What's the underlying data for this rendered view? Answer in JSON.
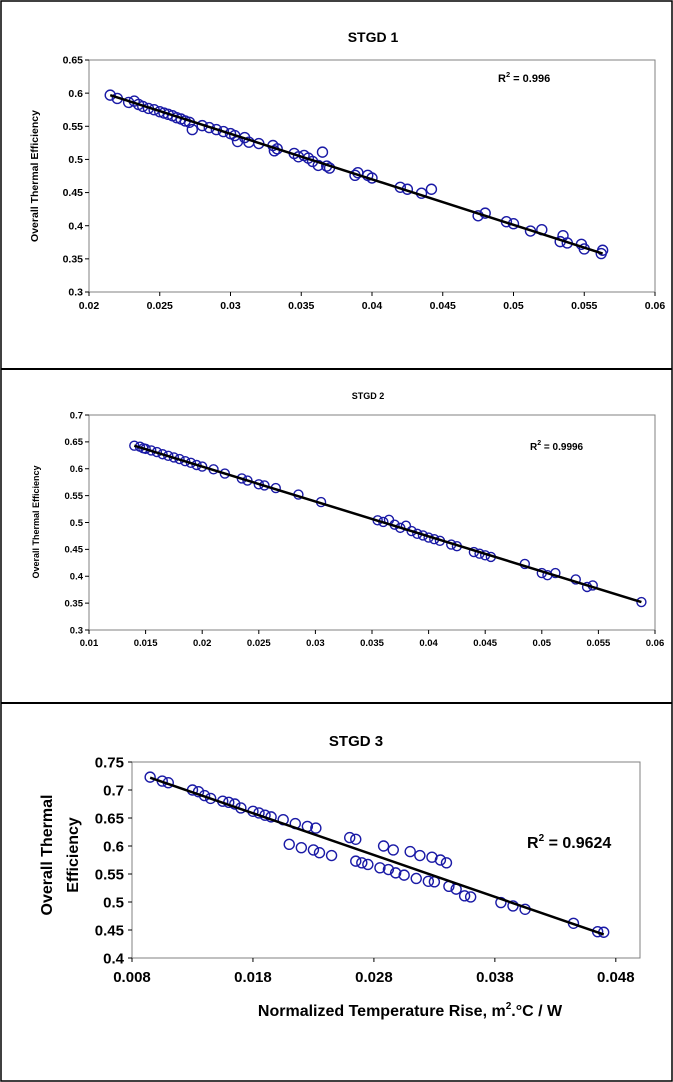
{
  "chart_data": [
    {
      "type": "scatter",
      "title": "STGD 1",
      "xlabel": "",
      "ylabel": "Overall Thermal Efficiency",
      "annotation": "R",
      "annotation_sup": "2",
      "annotation_val": " = 0.996",
      "xlim": [
        0.02,
        0.06
      ],
      "ylim": [
        0.3,
        0.65
      ],
      "xticks": [
        "0.02",
        "0.025",
        "0.03",
        "0.035",
        "0.04",
        "0.045",
        "0.05",
        "0.055",
        "0.06"
      ],
      "yticks": [
        "0.3",
        "0.35",
        "0.4",
        "0.45",
        "0.5",
        "0.55",
        "0.6",
        "0.65"
      ],
      "grid": false,
      "marker_color": "#1a1aa6",
      "trend": {
        "x": [
          0.0215,
          0.0563
        ],
        "y": [
          0.597,
          0.358
        ],
        "color": "#000000"
      },
      "points": [
        [
          0.0215,
          0.597
        ],
        [
          0.022,
          0.592
        ],
        [
          0.0228,
          0.586
        ],
        [
          0.0232,
          0.588
        ],
        [
          0.0235,
          0.583
        ],
        [
          0.0238,
          0.58
        ],
        [
          0.0242,
          0.577
        ],
        [
          0.0246,
          0.575
        ],
        [
          0.025,
          0.572
        ],
        [
          0.0253,
          0.57
        ],
        [
          0.0256,
          0.568
        ],
        [
          0.0259,
          0.566
        ],
        [
          0.0262,
          0.563
        ],
        [
          0.0265,
          0.561
        ],
        [
          0.0268,
          0.558
        ],
        [
          0.0271,
          0.556
        ],
        [
          0.0273,
          0.545
        ],
        [
          0.028,
          0.551
        ],
        [
          0.0285,
          0.548
        ],
        [
          0.029,
          0.545
        ],
        [
          0.0295,
          0.542
        ],
        [
          0.03,
          0.539
        ],
        [
          0.0303,
          0.536
        ],
        [
          0.0305,
          0.527
        ],
        [
          0.031,
          0.533
        ],
        [
          0.0313,
          0.526
        ],
        [
          0.032,
          0.524
        ],
        [
          0.033,
          0.521
        ],
        [
          0.0331,
          0.513
        ],
        [
          0.0333,
          0.516
        ],
        [
          0.0345,
          0.509
        ],
        [
          0.0348,
          0.504
        ],
        [
          0.0352,
          0.506
        ],
        [
          0.0355,
          0.502
        ],
        [
          0.0358,
          0.497
        ],
        [
          0.0362,
          0.491
        ],
        [
          0.0365,
          0.511
        ],
        [
          0.0368,
          0.49
        ],
        [
          0.037,
          0.487
        ],
        [
          0.0388,
          0.476
        ],
        [
          0.039,
          0.48
        ],
        [
          0.0397,
          0.476
        ],
        [
          0.04,
          0.472
        ],
        [
          0.042,
          0.458
        ],
        [
          0.0425,
          0.455
        ],
        [
          0.0435,
          0.449
        ],
        [
          0.0442,
          0.455
        ],
        [
          0.0475,
          0.415
        ],
        [
          0.048,
          0.419
        ],
        [
          0.0495,
          0.406
        ],
        [
          0.05,
          0.403
        ],
        [
          0.0512,
          0.392
        ],
        [
          0.052,
          0.394
        ],
        [
          0.0533,
          0.376
        ],
        [
          0.0535,
          0.385
        ],
        [
          0.0538,
          0.374
        ],
        [
          0.0548,
          0.372
        ],
        [
          0.055,
          0.365
        ],
        [
          0.0562,
          0.358
        ],
        [
          0.0563,
          0.363
        ]
      ]
    },
    {
      "type": "scatter",
      "title": "STGD 2",
      "xlabel": "",
      "ylabel": "Overall Thermal Efficiency",
      "annotation": "R",
      "annotation_sup": "2",
      "annotation_val": " = 0.9996",
      "xlim": [
        0.01,
        0.06
      ],
      "ylim": [
        0.3,
        0.7
      ],
      "xticks": [
        "0.01",
        "0.015",
        "0.02",
        "0.025",
        "0.03",
        "0.035",
        "0.04",
        "0.045",
        "0.05",
        "0.055",
        "0.06"
      ],
      "yticks": [
        "0.3",
        "0.35",
        "0.4",
        "0.45",
        "0.5",
        "0.55",
        "0.6",
        "0.65",
        "0.7"
      ],
      "grid": false,
      "marker_color": "#1a1aa6",
      "trend": {
        "x": [
          0.014,
          0.0588
        ],
        "y": [
          0.643,
          0.352
        ],
        "color": "#000000"
      },
      "points": [
        [
          0.014,
          0.643
        ],
        [
          0.0145,
          0.641
        ],
        [
          0.0148,
          0.638
        ],
        [
          0.015,
          0.637
        ],
        [
          0.0155,
          0.634
        ],
        [
          0.016,
          0.631
        ],
        [
          0.0165,
          0.627
        ],
        [
          0.017,
          0.624
        ],
        [
          0.0175,
          0.621
        ],
        [
          0.018,
          0.618
        ],
        [
          0.0185,
          0.614
        ],
        [
          0.019,
          0.611
        ],
        [
          0.0195,
          0.607
        ],
        [
          0.02,
          0.604
        ],
        [
          0.021,
          0.599
        ],
        [
          0.022,
          0.591
        ],
        [
          0.0235,
          0.582
        ],
        [
          0.024,
          0.578
        ],
        [
          0.025,
          0.571
        ],
        [
          0.0255,
          0.569
        ],
        [
          0.0265,
          0.564
        ],
        [
          0.0285,
          0.552
        ],
        [
          0.0305,
          0.538
        ],
        [
          0.0355,
          0.504
        ],
        [
          0.036,
          0.501
        ],
        [
          0.0365,
          0.505
        ],
        [
          0.037,
          0.496
        ],
        [
          0.0375,
          0.49
        ],
        [
          0.038,
          0.494
        ],
        [
          0.0385,
          0.484
        ],
        [
          0.039,
          0.479
        ],
        [
          0.0395,
          0.476
        ],
        [
          0.04,
          0.472
        ],
        [
          0.0405,
          0.469
        ],
        [
          0.041,
          0.466
        ],
        [
          0.042,
          0.459
        ],
        [
          0.0425,
          0.456
        ],
        [
          0.044,
          0.445
        ],
        [
          0.0445,
          0.442
        ],
        [
          0.045,
          0.439
        ],
        [
          0.0455,
          0.436
        ],
        [
          0.0485,
          0.423
        ],
        [
          0.05,
          0.406
        ],
        [
          0.0505,
          0.402
        ],
        [
          0.0512,
          0.406
        ],
        [
          0.053,
          0.394
        ],
        [
          0.054,
          0.38
        ],
        [
          0.0545,
          0.383
        ],
        [
          0.0588,
          0.352
        ]
      ]
    },
    {
      "type": "scatter",
      "title": "STGD 3",
      "xlabel": "Normalized Temperature Rise, m",
      "xlabel_sup": "2",
      "xlabel_rest": ".°C / W",
      "ylabel_line1": "Overall Thermal",
      "ylabel_line2": "Efficiency",
      "annotation": "R",
      "annotation_sup": "2",
      "annotation_val": " = 0.9624",
      "xlim": [
        0.008,
        0.05
      ],
      "ylim": [
        0.4,
        0.75
      ],
      "xticks": [
        "0.008",
        "0.018",
        "0.028",
        "0.038",
        "0.048"
      ],
      "xtick_values": [
        0.008,
        0.018,
        0.028,
        0.038,
        0.048
      ],
      "yticks": [
        "0.4",
        "0.45",
        "0.5",
        "0.55",
        "0.6",
        "0.65",
        "0.7",
        "0.75"
      ],
      "grid": false,
      "marker_color": "#1a1aa6",
      "trend": {
        "x": [
          0.0095,
          0.047
        ],
        "y": [
          0.722,
          0.442
        ],
        "color": "#000000"
      },
      "points": [
        [
          0.0095,
          0.723
        ],
        [
          0.0105,
          0.716
        ],
        [
          0.011,
          0.713
        ],
        [
          0.013,
          0.7
        ],
        [
          0.0135,
          0.697
        ],
        [
          0.014,
          0.69
        ],
        [
          0.0145,
          0.685
        ],
        [
          0.0155,
          0.68
        ],
        [
          0.016,
          0.678
        ],
        [
          0.0165,
          0.675
        ],
        [
          0.017,
          0.668
        ],
        [
          0.018,
          0.662
        ],
        [
          0.0185,
          0.659
        ],
        [
          0.019,
          0.655
        ],
        [
          0.0195,
          0.652
        ],
        [
          0.0205,
          0.647
        ],
        [
          0.0215,
          0.64
        ],
        [
          0.0225,
          0.635
        ],
        [
          0.0232,
          0.632
        ],
        [
          0.021,
          0.603
        ],
        [
          0.022,
          0.597
        ],
        [
          0.023,
          0.593
        ],
        [
          0.0235,
          0.588
        ],
        [
          0.0245,
          0.583
        ],
        [
          0.026,
          0.615
        ],
        [
          0.0265,
          0.612
        ],
        [
          0.0265,
          0.573
        ],
        [
          0.027,
          0.57
        ],
        [
          0.0275,
          0.567
        ],
        [
          0.0285,
          0.561
        ],
        [
          0.0288,
          0.6
        ],
        [
          0.0292,
          0.558
        ],
        [
          0.0296,
          0.593
        ],
        [
          0.0298,
          0.552
        ],
        [
          0.0305,
          0.548
        ],
        [
          0.031,
          0.59
        ],
        [
          0.0315,
          0.542
        ],
        [
          0.0318,
          0.583
        ],
        [
          0.0325,
          0.537
        ],
        [
          0.0328,
          0.58
        ],
        [
          0.033,
          0.536
        ],
        [
          0.0335,
          0.575
        ],
        [
          0.034,
          0.57
        ],
        [
          0.0342,
          0.528
        ],
        [
          0.0348,
          0.523
        ],
        [
          0.0355,
          0.511
        ],
        [
          0.036,
          0.509
        ],
        [
          0.0385,
          0.499
        ],
        [
          0.0395,
          0.493
        ],
        [
          0.0405,
          0.487
        ],
        [
          0.0445,
          0.462
        ],
        [
          0.0465,
          0.447
        ],
        [
          0.047,
          0.446
        ]
      ]
    }
  ]
}
